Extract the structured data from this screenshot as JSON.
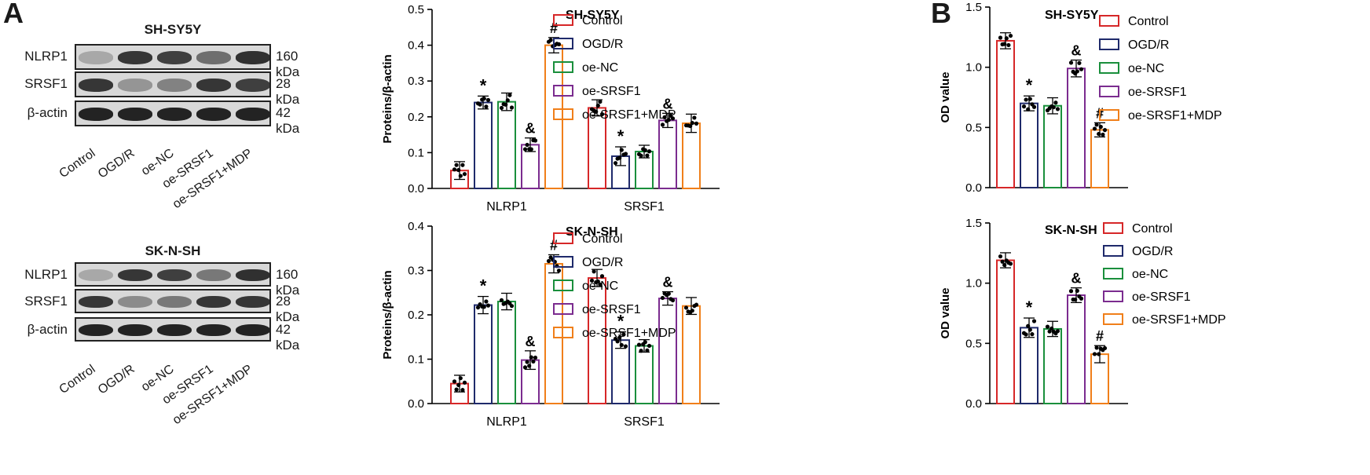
{
  "panel_letters": {
    "a": "A",
    "b": "B"
  },
  "western_blots": [
    {
      "title": "SH-SY5Y",
      "rows": [
        {
          "label": "NLRP1",
          "kda": "160 kDa",
          "intensity": [
            0.25,
            0.85,
            0.8,
            0.55,
            0.88
          ]
        },
        {
          "label": "SRSF1",
          "kda": "28 kDa",
          "intensity": [
            0.85,
            0.35,
            0.45,
            0.85,
            0.8
          ]
        },
        {
          "label": "β-actin",
          "kda": "42 kDa",
          "intensity": [
            0.95,
            0.95,
            0.95,
            0.95,
            0.95
          ]
        }
      ],
      "lanes": [
        "Control",
        "OGD/R",
        "oe-NC",
        "oe-SRSF1",
        "oe-SRSF1+MDP"
      ]
    },
    {
      "title": "SK-N-SH",
      "rows": [
        {
          "label": "NLRP1",
          "kda": "160 kDa",
          "intensity": [
            0.25,
            0.85,
            0.8,
            0.5,
            0.88
          ]
        },
        {
          "label": "SRSF1",
          "kda": "28 kDa",
          "intensity": [
            0.85,
            0.4,
            0.5,
            0.85,
            0.85
          ]
        },
        {
          "label": "β-actin",
          "kda": "42 kDa",
          "intensity": [
            0.95,
            0.95,
            0.95,
            0.95,
            0.95
          ]
        }
      ],
      "lanes": [
        "Control",
        "OGD/R",
        "oe-NC",
        "oe-SRSF1",
        "oe-SRSF1+MDP"
      ]
    }
  ],
  "legend": {
    "items": [
      "Control",
      "OGD/R",
      "oe-NC",
      "oe-SRSF1",
      "oe-SRSF1+MDP"
    ],
    "colors": [
      "#d62728",
      "#1f2a6b",
      "#1a8f3c",
      "#7b2c8f",
      "#f07f1a"
    ]
  },
  "chart_data": [
    {
      "type": "bar",
      "title": "SH-SY5Y",
      "ylabel": "Proteins/β-actin",
      "ylim": [
        0,
        0.5
      ],
      "yticks": [
        "0.0",
        "0.1",
        "0.2",
        "0.3",
        "0.4",
        "0.5"
      ],
      "categories": [
        "NLRP1",
        "SRSF1"
      ],
      "series": [
        {
          "name": "Control",
          "values": [
            0.05,
            0.225
          ],
          "marks": [
            "",
            ""
          ]
        },
        {
          "name": "OGD/R",
          "values": [
            0.24,
            0.09
          ],
          "marks": [
            "*",
            "*"
          ]
        },
        {
          "name": "oe-NC",
          "values": [
            0.242,
            0.103
          ],
          "marks": [
            "",
            ""
          ]
        },
        {
          "name": "oe-SRSF1",
          "values": [
            0.122,
            0.19
          ],
          "marks": [
            "&",
            "&"
          ]
        },
        {
          "name": "oe-SRSF1+MDP",
          "values": [
            0.4,
            0.182
          ],
          "marks": [
            "#",
            ""
          ]
        }
      ]
    },
    {
      "type": "bar",
      "title": "SK-N-SH",
      "ylabel": "Proteins/β-actin",
      "ylim": [
        0,
        0.4
      ],
      "yticks": [
        "0.0",
        "0.1",
        "0.2",
        "0.3",
        "0.4"
      ],
      "categories": [
        "NLRP1",
        "SRSF1"
      ],
      "series": [
        {
          "name": "Control",
          "values": [
            0.045,
            0.283
          ],
          "marks": [
            "",
            ""
          ]
        },
        {
          "name": "OGD/R",
          "values": [
            0.222,
            0.143
          ],
          "marks": [
            "*",
            "*"
          ]
        },
        {
          "name": "oe-NC",
          "values": [
            0.23,
            0.13
          ],
          "marks": [
            "",
            ""
          ]
        },
        {
          "name": "oe-SRSF1",
          "values": [
            0.098,
            0.237
          ],
          "marks": [
            "&",
            "&"
          ]
        },
        {
          "name": "oe-SRSF1+MDP",
          "values": [
            0.315,
            0.22
          ],
          "marks": [
            "#",
            ""
          ]
        }
      ]
    },
    {
      "type": "bar",
      "title": "SH-SY5Y",
      "ylabel": "OD value",
      "ylim": [
        0,
        1.5
      ],
      "yticks": [
        "0.0",
        "0.5",
        "1.0",
        "1.5"
      ],
      "categories": [
        ""
      ],
      "series": [
        {
          "name": "Control",
          "values": [
            1.22
          ],
          "marks": [
            ""
          ]
        },
        {
          "name": "OGD/R",
          "values": [
            0.7
          ],
          "marks": [
            "*"
          ]
        },
        {
          "name": "oe-NC",
          "values": [
            0.68
          ],
          "marks": [
            ""
          ]
        },
        {
          "name": "oe-SRSF1",
          "values": [
            0.99
          ],
          "marks": [
            "&"
          ]
        },
        {
          "name": "oe-SRSF1+MDP",
          "values": [
            0.48
          ],
          "marks": [
            "#"
          ]
        }
      ]
    },
    {
      "type": "bar",
      "title": "SK-N-SH",
      "ylabel": "OD value",
      "ylim": [
        0,
        1.5
      ],
      "yticks": [
        "0.0",
        "0.5",
        "1.0",
        "1.5"
      ],
      "categories": [
        ""
      ],
      "series": [
        {
          "name": "Control",
          "values": [
            1.19
          ],
          "marks": [
            ""
          ]
        },
        {
          "name": "OGD/R",
          "values": [
            0.63
          ],
          "marks": [
            "*"
          ]
        },
        {
          "name": "oe-NC",
          "values": [
            0.62
          ],
          "marks": [
            ""
          ]
        },
        {
          "name": "oe-SRSF1",
          "values": [
            0.9
          ],
          "marks": [
            "&"
          ]
        },
        {
          "name": "oe-SRSF1+MDP",
          "values": [
            0.41
          ],
          "marks": [
            "#"
          ]
        }
      ]
    }
  ]
}
